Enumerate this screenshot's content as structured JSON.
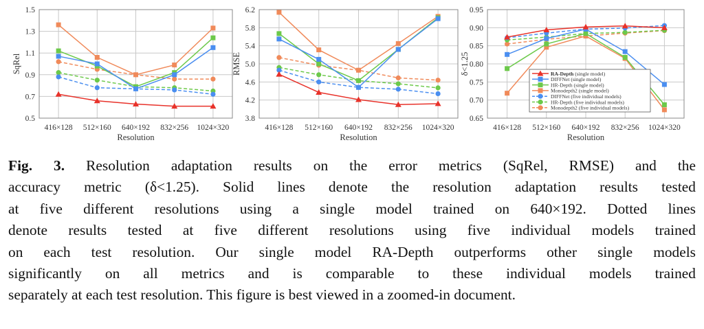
{
  "colors": {
    "ra": "#e8322a",
    "diff": "#4a8ef0",
    "hr": "#6cc94a",
    "mono": "#f08a5a"
  },
  "legend": [
    {
      "bold": "RA-Depth",
      "rest": " (single model)",
      "color": "#e8322a",
      "marker": "triangle",
      "dash": false
    },
    {
      "bold": "",
      "rest": "DIFFNet (single model)",
      "color": "#4a8ef0",
      "marker": "square",
      "dash": false
    },
    {
      "bold": "",
      "rest": "HR-Depth (single model)",
      "color": "#6cc94a",
      "marker": "square",
      "dash": false
    },
    {
      "bold": "",
      "rest": "Monodepth2 (single model)",
      "color": "#f08a5a",
      "marker": "square",
      "dash": false
    },
    {
      "bold": "",
      "rest": "DIFFNet (five individual models)",
      "color": "#4a8ef0",
      "marker": "circle",
      "dash": true
    },
    {
      "bold": "",
      "rest": "HR-Depth (five individual models)",
      "color": "#6cc94a",
      "marker": "circle",
      "dash": true
    },
    {
      "bold": "",
      "rest": "Monodepth2 (five individual models)",
      "color": "#f08a5a",
      "marker": "circle",
      "dash": true
    }
  ],
  "chart_data": [
    {
      "type": "line",
      "xlabel": "Resolution",
      "ylabel": "SqRel",
      "categories": [
        "416×128",
        "512×160",
        "640×192",
        "832×256",
        "1024×320"
      ],
      "ylim": [
        0.5,
        1.5
      ],
      "yticks": [
        "0.5",
        "0.7",
        "0.9",
        "1.1",
        "1.3",
        "1.5"
      ],
      "grid": true,
      "series": [
        [
          0.72,
          0.66,
          0.63,
          0.61,
          0.61
        ],
        [
          1.07,
          1.0,
          0.77,
          0.9,
          1.15
        ],
        [
          1.12,
          0.98,
          0.79,
          0.92,
          1.24
        ],
        [
          1.36,
          1.06,
          0.9,
          0.99,
          1.33
        ],
        [
          0.88,
          0.78,
          0.77,
          0.76,
          0.72
        ],
        [
          0.92,
          0.85,
          0.79,
          0.78,
          0.75
        ],
        [
          1.02,
          0.95,
          0.9,
          0.86,
          0.86
        ]
      ]
    },
    {
      "type": "line",
      "xlabel": "Resolution",
      "ylabel": "RMSE",
      "categories": [
        "416×128",
        "512×160",
        "640×192",
        "832×256",
        "1024×320"
      ],
      "ylim": [
        3.8,
        6.2
      ],
      "yticks": [
        "3.8",
        "4.2",
        "4.6",
        "5.0",
        "5.4",
        "5.8",
        "6.2"
      ],
      "grid": true,
      "series": [
        [
          4.77,
          4.37,
          4.21,
          4.1,
          4.12
        ],
        [
          5.55,
          5.1,
          4.48,
          5.32,
          6.0
        ],
        [
          5.67,
          5.0,
          4.63,
          5.32,
          6.02
        ],
        [
          6.14,
          5.31,
          4.86,
          5.45,
          6.05
        ],
        [
          4.86,
          4.6,
          4.48,
          4.44,
          4.34
        ],
        [
          4.92,
          4.76,
          4.63,
          4.56,
          4.47
        ],
        [
          5.14,
          4.97,
          4.86,
          4.69,
          4.64
        ]
      ]
    },
    {
      "type": "line",
      "xlabel": "Resolution",
      "ylabel": "δ<1.25",
      "categories": [
        "416×128",
        "512×160",
        "640×192",
        "832×256",
        "1024×320"
      ],
      "ylim": [
        0.65,
        0.95
      ],
      "yticks": [
        "0.65",
        "0.70",
        "0.75",
        "0.80",
        "0.85",
        "0.90",
        "0.95"
      ],
      "grid": true,
      "legend_position": "bottom-center",
      "series": [
        [
          0.874,
          0.894,
          0.902,
          0.905,
          0.9
        ],
        [
          0.826,
          0.87,
          0.896,
          0.834,
          0.743
        ],
        [
          0.787,
          0.855,
          0.884,
          0.818,
          0.687
        ],
        [
          0.719,
          0.846,
          0.877,
          0.815,
          0.673
        ],
        [
          0.872,
          0.885,
          0.896,
          0.899,
          0.906
        ],
        [
          0.866,
          0.874,
          0.884,
          0.887,
          0.893
        ],
        [
          0.855,
          0.868,
          0.877,
          0.885,
          0.892
        ]
      ]
    }
  ],
  "caption": {
    "label": "Fig. 3.",
    "lines": [
      " Resolution adaptation results on the error metrics (SqRel, RMSE) and the",
      "accuracy metric (δ<1.25). Solid lines denote the resolution adaptation results tested",
      "at five different resolutions using a single model trained on 640×192. Dotted lines",
      "denote results tested at five different resolutions using five individual models trained",
      "on each test resolution. Our single model RA-Depth outperforms other single models",
      "significantly on all metrics and is comparable to these individual models trained",
      "separately at each test resolution. This figure is best viewed in a zoomed-in document."
    ]
  }
}
